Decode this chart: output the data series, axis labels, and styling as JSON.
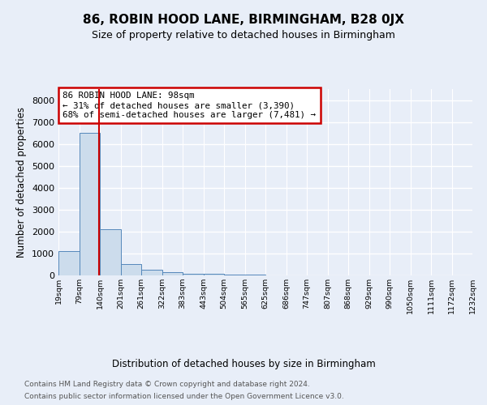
{
  "title": "86, ROBIN HOOD LANE, BIRMINGHAM, B28 0JX",
  "subtitle": "Size of property relative to detached houses in Birmingham",
  "xlabel": "Distribution of detached houses by size in Birmingham",
  "ylabel": "Number of detached properties",
  "bar_values": [
    1100,
    6500,
    2100,
    500,
    250,
    130,
    90,
    60,
    40,
    20,
    10,
    5,
    3,
    2,
    1,
    1,
    0,
    0,
    0,
    0
  ],
  "bar_color": "#ccdcec",
  "bar_edge_color": "#5588bb",
  "annotation_line1": "86 ROBIN HOOD LANE: 98sqm",
  "annotation_line2": "← 31% of detached houses are smaller (3,390)",
  "annotation_line3": "68% of semi-detached houses are larger (7,481) →",
  "x_tick_labels": [
    "19sqm",
    "79sqm",
    "140sqm",
    "201sqm",
    "261sqm",
    "322sqm",
    "383sqm",
    "443sqm",
    "504sqm",
    "565sqm",
    "625sqm",
    "686sqm",
    "747sqm",
    "807sqm",
    "868sqm",
    "929sqm",
    "990sqm",
    "1050sqm",
    "1111sqm",
    "1172sqm",
    "1232sqm"
  ],
  "ylim": [
    0,
    8500
  ],
  "yticks": [
    0,
    1000,
    2000,
    3000,
    4000,
    5000,
    6000,
    7000,
    8000
  ],
  "footer1": "Contains HM Land Registry data © Crown copyright and database right 2024.",
  "footer2": "Contains public sector information licensed under the Open Government Licence v3.0.",
  "bg_color": "#e8eef8",
  "plot_bg_color": "#e8eef8",
  "grid_color": "#ffffff",
  "annotation_box_color": "#ffffff",
  "annotation_box_edge_color": "#cc0000",
  "red_line_color": "#cc0000",
  "red_line_x": 1.45
}
